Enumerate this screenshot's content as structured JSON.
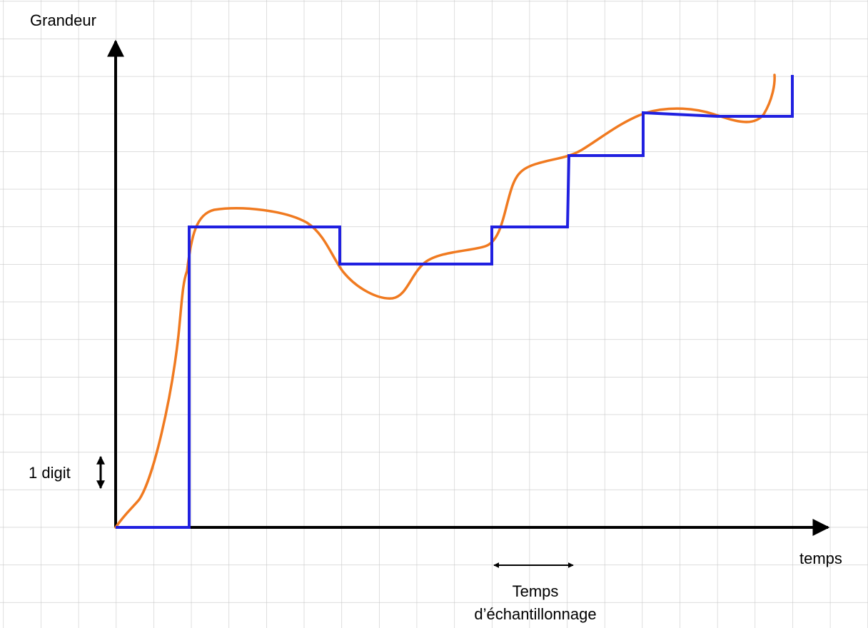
{
  "labels": {
    "y_axis": "Grandeur",
    "x_axis": "temps",
    "digit": "1 digit",
    "sample_time": [
      "Temps",
      "d’échantillonnage"
    ]
  }
}
